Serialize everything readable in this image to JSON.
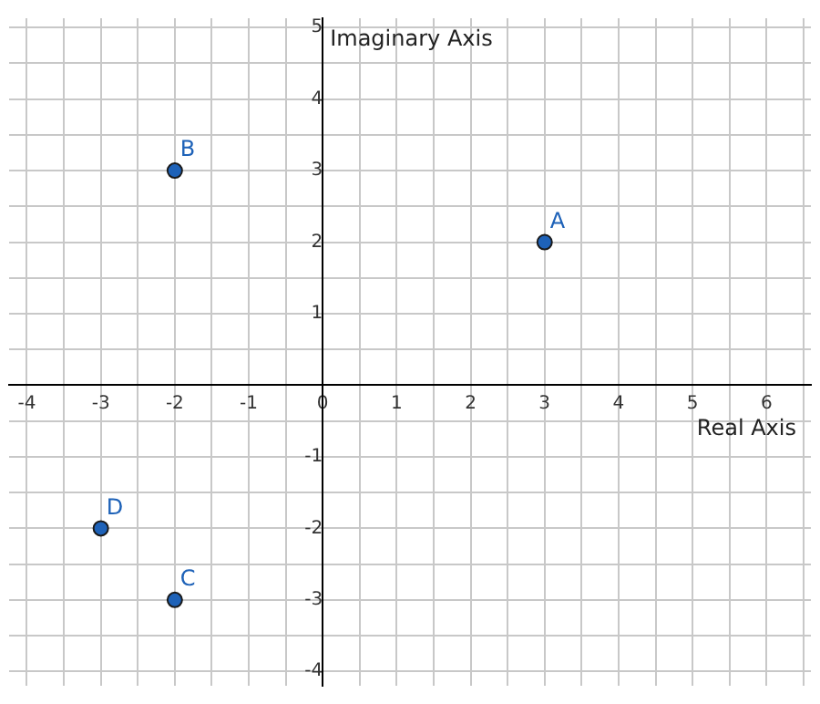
{
  "chart_data": {
    "type": "scatter",
    "xlabel": "Real Axis",
    "ylabel": "Imaginary Axis",
    "x": [
      3,
      -2,
      -2,
      -3
    ],
    "series": [
      {
        "color": "#1e62b8",
        "values": [
          2,
          3,
          -3,
          -2
        ]
      }
    ],
    "annotations": [
      {
        "text": "A",
        "x": 3,
        "y": 2
      },
      {
        "text": "B",
        "x": -2,
        "y": 3
      },
      {
        "text": "C",
        "x": -2,
        "y": -3
      },
      {
        "text": "D",
        "x": -3,
        "y": -2
      }
    ],
    "xlim": [
      -4.24,
      6.6
    ],
    "ylim": [
      -4.2,
      5.13
    ],
    "xticks": [
      -4,
      {
        "value": -3.5,
        "label": null
      },
      -3,
      {
        "value": -2.5,
        "label": null
      },
      -2,
      {
        "value": -1.5,
        "label": null
      },
      -1,
      {
        "value": -0.5,
        "label": null
      },
      0,
      {
        "value": 0.5,
        "label": null
      },
      1,
      {
        "value": 1.5,
        "label": null
      },
      2,
      {
        "value": 2.5,
        "label": null
      },
      3,
      {
        "value": 3.5,
        "label": null
      },
      4,
      {
        "value": 4.5,
        "label": null
      },
      5,
      {
        "value": 5.5,
        "label": null
      },
      6,
      {
        "value": 6.5,
        "label": null
      }
    ],
    "yticks": [
      -4,
      {
        "value": -3.5,
        "label": null
      },
      -3,
      {
        "value": -2.5,
        "label": null
      },
      -2,
      {
        "value": -1.5,
        "label": null
      },
      -1,
      {
        "value": -0.5,
        "label": null
      },
      {
        "value": 0,
        "label": null
      },
      {
        "value": 0.5,
        "label": null
      },
      1,
      {
        "value": 1.5,
        "label": null
      },
      2,
      {
        "value": 2.5,
        "label": null
      },
      3,
      {
        "value": 3.5,
        "label": null
      },
      4,
      {
        "value": 4.5,
        "label": null
      },
      5
    ],
    "grid": true,
    "marker": "circle",
    "legend": false
  }
}
